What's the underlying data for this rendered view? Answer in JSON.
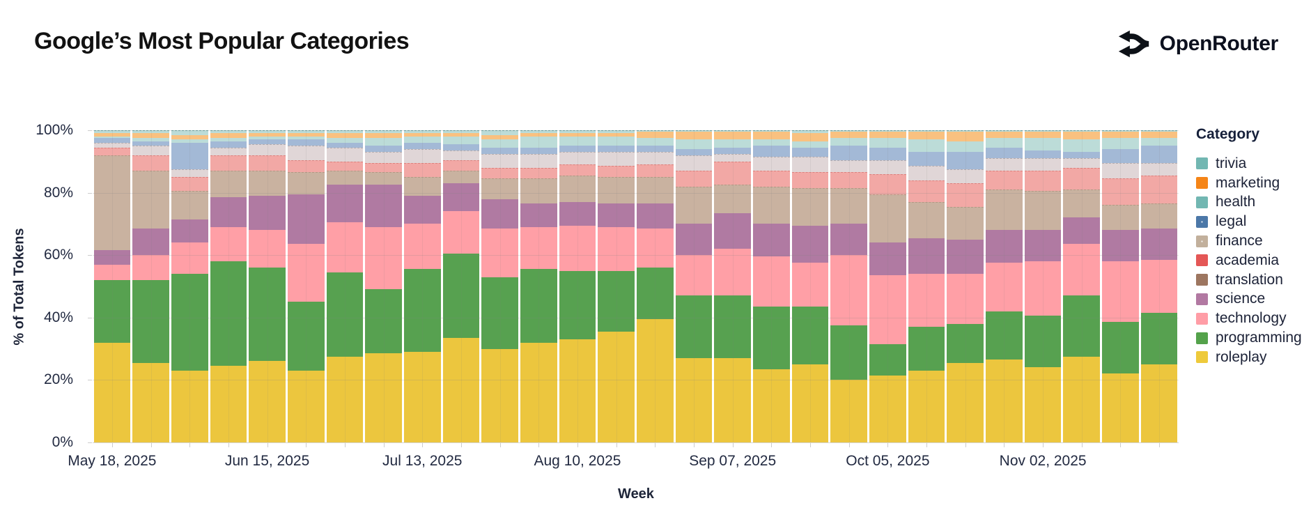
{
  "header": {
    "title": "Google’s Most Popular Categories",
    "brand": "OpenRouter"
  },
  "chart_data": {
    "type": "bar",
    "stacked": true,
    "normalized": true,
    "title": "Google’s Most Popular Categories",
    "xlabel": "Week",
    "ylabel": "% of Total Tokens",
    "ylim": [
      0,
      100
    ],
    "grid": true,
    "legend_position": "right",
    "legend_title": "Category",
    "y_ticks": [
      {
        "value": 0,
        "label": "0%"
      },
      {
        "value": 20,
        "label": "20%"
      },
      {
        "value": 40,
        "label": "40%"
      },
      {
        "value": 60,
        "label": "60%"
      },
      {
        "value": 80,
        "label": "80%"
      },
      {
        "value": 100,
        "label": "100%"
      }
    ],
    "x_axis_ticks": [
      {
        "week_index": 0,
        "label": "May 18, 2025"
      },
      {
        "week_index": 4,
        "label": "Jun 15, 2025"
      },
      {
        "week_index": 8,
        "label": "Jul 13, 2025"
      },
      {
        "week_index": 12,
        "label": "Aug 10, 2025"
      },
      {
        "week_index": 16,
        "label": "Sep 07, 2025"
      },
      {
        "week_index": 20,
        "label": "Oct 05, 2025"
      },
      {
        "week_index": 24,
        "label": "Nov 02, 2025"
      }
    ],
    "weeks": [
      "May 18",
      "May 25",
      "Jun 01",
      "Jun 08",
      "Jun 15",
      "Jun 22",
      "Jun 29",
      "Jul 06",
      "Jul 13",
      "Jul 20",
      "Jul 27",
      "Aug 03",
      "Aug 10",
      "Aug 17",
      "Aug 24",
      "Aug 31",
      "Sep 07",
      "Sep 14",
      "Sep 21",
      "Sep 28",
      "Oct 05",
      "Oct 12",
      "Oct 19",
      "Oct 26",
      "Nov 02",
      "Nov 09",
      "Nov 16",
      "Nov 23"
    ],
    "series": [
      {
        "name": "trivia",
        "legend_color": "#72b7b2",
        "bar_color": "#bcdcd8",
        "textured": false,
        "values": [
          1,
          1,
          1.5,
          1,
          1,
          1,
          1,
          1,
          1,
          1,
          1.5,
          1,
          1,
          1,
          0.5,
          0.5,
          0.5,
          0.5,
          1,
          0.5,
          0.5,
          0.5,
          0.5,
          0.5,
          0.5,
          0.5,
          0.5,
          0.5
        ]
      },
      {
        "name": "marketing",
        "legend_color": "#f58518",
        "bar_color": "#f9c180",
        "textured": false,
        "values": [
          1,
          1.5,
          1.5,
          1.5,
          1,
          1,
          1.5,
          1.5,
          1,
          1,
          1.5,
          1,
          1,
          1,
          2,
          2.5,
          2.5,
          2.5,
          2.5,
          2,
          2,
          2.5,
          3,
          2,
          2,
          2.5,
          2,
          2
        ]
      },
      {
        "name": "health",
        "legend_color": "#72b7b2",
        "bar_color": "#bcdcd8",
        "textured": false,
        "values": [
          0.5,
          1,
          1,
          1,
          1,
          1,
          1.5,
          2.5,
          2,
          2.5,
          2.5,
          3.5,
          3,
          3,
          2.5,
          3,
          2.5,
          2,
          2,
          2.5,
          3,
          4,
          3.5,
          3,
          4,
          4,
          3.5,
          2.5
        ]
      },
      {
        "name": "legal",
        "legend_color": "#4c78a8",
        "bar_color": "#a3b9d6",
        "textured": true,
        "values": [
          1.5,
          1.5,
          8.5,
          2,
          1.5,
          2,
          1.5,
          2,
          2,
          2,
          2,
          2,
          2,
          2,
          2,
          2,
          2,
          3.5,
          3,
          4.5,
          4,
          4.5,
          5.5,
          3.5,
          2.5,
          2,
          4.5,
          5.5
        ]
      },
      {
        "name": "finance",
        "legend_color": "#c2b09c",
        "bar_color": "#e0d6d7",
        "textured": true,
        "values": [
          1.5,
          3,
          2.5,
          2.5,
          3.5,
          4.5,
          4.5,
          3.5,
          4.5,
          3,
          4.5,
          4.5,
          4,
          4.5,
          4,
          5,
          2.5,
          4.5,
          5,
          4,
          4.5,
          4.5,
          4.5,
          4,
          4,
          3,
          5,
          4
        ]
      },
      {
        "name": "academia",
        "legend_color": "#e45756",
        "bar_color": "#f2a8a5",
        "textured": false,
        "values": [
          2.5,
          5,
          4.5,
          5,
          5,
          4,
          3,
          3,
          4.5,
          3.5,
          3.5,
          3.5,
          3.5,
          3.5,
          4,
          5,
          7.5,
          5,
          5,
          5,
          6.5,
          7,
          7.5,
          6,
          6.5,
          7,
          8.5,
          9
        ]
      },
      {
        "name": "translation",
        "legend_color": "#9d7660",
        "bar_color": "#c9b2a0",
        "textured": false,
        "values": [
          30.5,
          18.5,
          9,
          8.5,
          8,
          7,
          4.5,
          4,
          6,
          4,
          6.5,
          8,
          8.5,
          8.5,
          8.5,
          12,
          9,
          12,
          12,
          11.5,
          15.5,
          11.5,
          10.5,
          13,
          12.5,
          9,
          8,
          8
        ]
      },
      {
        "name": "science",
        "legend_color": "#b279a2",
        "bar_color": "#b07aa2",
        "textured": false,
        "values": [
          4.5,
          8.5,
          7.5,
          9.5,
          11,
          16,
          12,
          13.5,
          9,
          9,
          9.5,
          7.5,
          7.5,
          7.5,
          8,
          10,
          11.5,
          10.5,
          12,
          10,
          10.5,
          11.5,
          11,
          10.5,
          10,
          8.5,
          10,
          10
        ]
      },
      {
        "name": "technology",
        "legend_color": "#ff9da6",
        "bar_color": "#ff9fa6",
        "textured": false,
        "values": [
          5,
          8,
          10,
          11,
          12,
          18.5,
          16,
          20,
          14.5,
          13.5,
          15.5,
          13.5,
          14.5,
          14,
          12.5,
          13,
          15,
          16,
          14,
          22.5,
          22,
          17,
          16,
          15.5,
          17.5,
          16.5,
          19.5,
          17
        ]
      },
      {
        "name": "programming",
        "legend_color": "#54a24b",
        "bar_color": "#57a150",
        "textured": false,
        "values": [
          20,
          26.5,
          31,
          33.5,
          30,
          22,
          27,
          20.5,
          26.5,
          27,
          23,
          23.5,
          22,
          19.5,
          16.5,
          20,
          20,
          20,
          18.5,
          17.5,
          10,
          14,
          12.5,
          15.5,
          16.5,
          19.5,
          16.5,
          16.5
        ]
      },
      {
        "name": "roleplay",
        "legend_color": "#eeca3b",
        "bar_color": "#ecc63e",
        "textured": false,
        "values": [
          32,
          25.5,
          23,
          24.5,
          26,
          23,
          27.5,
          28.5,
          29,
          33.5,
          30,
          32,
          33,
          35.5,
          39.5,
          27,
          27,
          23.5,
          25,
          20,
          21.5,
          23,
          25.5,
          26.5,
          24,
          27.5,
          22,
          25
        ]
      }
    ]
  }
}
